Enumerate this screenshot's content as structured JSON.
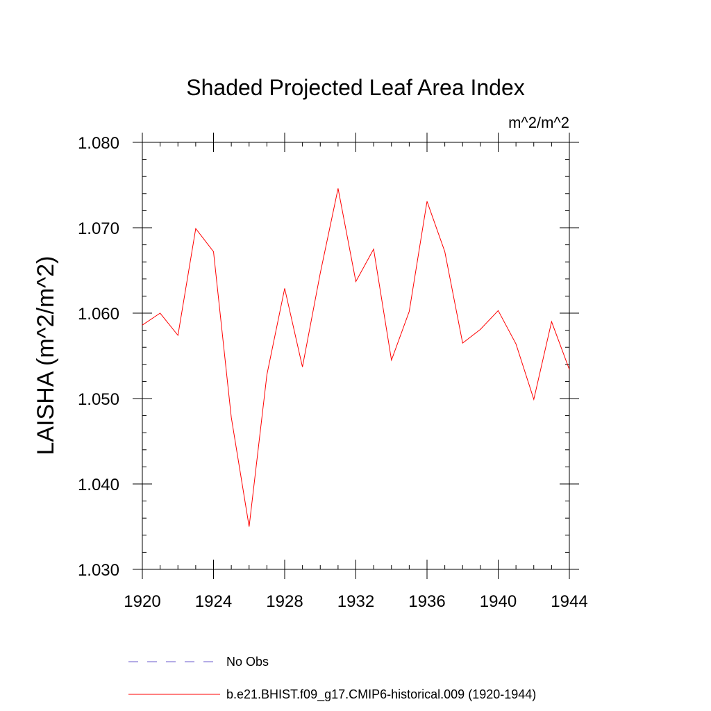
{
  "chart_data": {
    "type": "line",
    "title": "Shaded Projected Leaf Area Index",
    "units_label": "m^2/m^2",
    "ylabel": "LAISHA  (m^2/m^2)",
    "xlabel": "",
    "xlim": [
      1920,
      1944
    ],
    "ylim": [
      1.03,
      1.08
    ],
    "x_ticks": [
      1920,
      1924,
      1928,
      1932,
      1936,
      1940,
      1944
    ],
    "x_tick_labels": [
      "1920",
      "1924",
      "1928",
      "1932",
      "1936",
      "1940",
      "1944"
    ],
    "y_ticks": [
      1.03,
      1.04,
      1.05,
      1.06,
      1.07,
      1.08
    ],
    "y_tick_labels": [
      "1.030",
      "1.040",
      "1.050",
      "1.060",
      "1.070",
      "1.080"
    ],
    "grid": false,
    "legend_position": "bottom",
    "series": [
      {
        "name": "b.e21.BHIST.f09_g17.CMIP6-historical.009 (1920-1944)",
        "color": "#ff0000",
        "style": "solid",
        "x": [
          1920,
          1921,
          1922,
          1923,
          1924,
          1925,
          1926,
          1927,
          1928,
          1929,
          1930,
          1931,
          1932,
          1933,
          1934,
          1935,
          1936,
          1937,
          1938,
          1939,
          1940,
          1941,
          1942,
          1943,
          1944
        ],
        "y": [
          1.0586,
          1.06,
          1.0574,
          1.0699,
          1.0672,
          1.0478,
          1.035,
          1.0528,
          1.0629,
          1.0537,
          1.0647,
          1.0746,
          1.0637,
          1.0675,
          1.0545,
          1.0602,
          1.0731,
          1.0672,
          1.0565,
          1.0581,
          1.0603,
          1.0564,
          1.0499,
          1.059,
          1.0534
        ]
      }
    ],
    "legend": [
      {
        "label": "No Obs",
        "color": "#6a5acd",
        "style": "dashed"
      },
      {
        "label": "b.e21.BHIST.f09_g17.CMIP6-historical.009 (1920-1944)",
        "color": "#ff0000",
        "style": "solid"
      }
    ]
  }
}
